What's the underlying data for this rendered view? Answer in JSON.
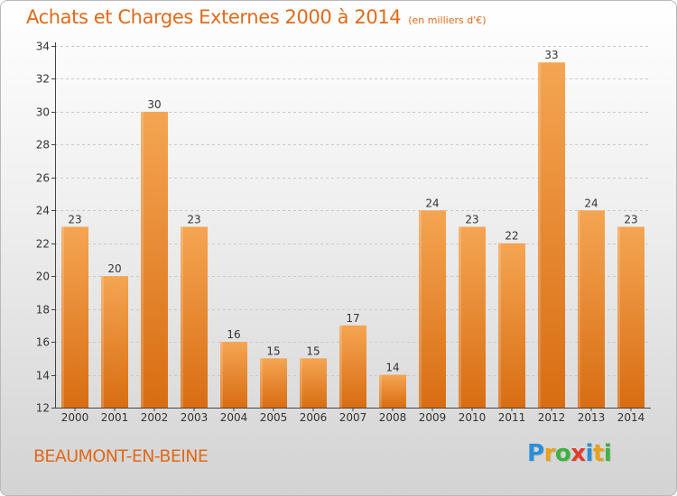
{
  "title": "Achats et Charges Externes 2000 à 2014",
  "unit": "(en milliers d'€)",
  "place": "BEAUMONT-EN-BEINE",
  "logo": {
    "letters": [
      "P",
      "r",
      "o",
      "x",
      "i",
      "t",
      "i"
    ],
    "colors": [
      "#2a8fd6",
      "#e8a21a",
      "#3db33d",
      "#e33b2e",
      "#2a8fd6",
      "#e8a21a",
      "#3db33d"
    ]
  },
  "colors": {
    "bar_top": "#f5a552",
    "bar_bottom": "#d86d12",
    "accent": "#e06a1a"
  },
  "chart_data": {
    "type": "bar",
    "categories": [
      "2000",
      "2001",
      "2002",
      "2003",
      "2004",
      "2005",
      "2006",
      "2007",
      "2008",
      "2009",
      "2010",
      "2011",
      "2012",
      "2013",
      "2014"
    ],
    "values": [
      23,
      20,
      30,
      23,
      16,
      15,
      15,
      17,
      14,
      24,
      23,
      22,
      33,
      24,
      23
    ],
    "ylim": [
      12,
      34
    ],
    "yticks": [
      12,
      14,
      16,
      18,
      20,
      22,
      24,
      26,
      28,
      30,
      32,
      34
    ],
    "grid": true
  }
}
